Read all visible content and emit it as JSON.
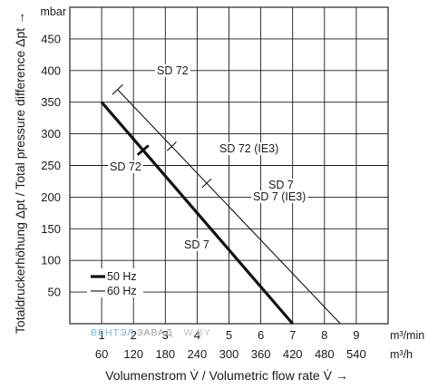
{
  "chart_data": {
    "type": "line",
    "xlabel": "Volumenstrom V̇ / Volumetric flow rate V̇ →",
    "ylabel": "Totaldruckerhöhung Δpt / Total pressure difference Δpt →",
    "y_unit": "mbar",
    "x_unit_primary": "m³/min",
    "x_unit_secondary": "m³/h",
    "xlim": [
      0,
      10
    ],
    "ylim": [
      0,
      500
    ],
    "grid": true,
    "x_ticks_primary": [
      "1",
      "2",
      "3",
      "4",
      "5",
      "6",
      "7",
      "8",
      "9"
    ],
    "x_ticks_secondary": [
      "60",
      "120",
      "180",
      "240",
      "300",
      "360",
      "420",
      "480",
      "540"
    ],
    "y_ticks": [
      "50",
      "100",
      "150",
      "200",
      "250",
      "300",
      "350",
      "400",
      "450"
    ],
    "legend": {
      "placement": "bottom-left",
      "entries": [
        {
          "label": "50 Hz",
          "style": "thick"
        },
        {
          "label": "60 Hz",
          "style": "thin"
        }
      ]
    },
    "series": [
      {
        "frequency": "50 Hz",
        "x": [
          1.0,
          7.0
        ],
        "y": [
          350,
          0
        ],
        "split_x": 2.3,
        "labels": [
          "SD 72",
          "SD 7"
        ]
      },
      {
        "frequency": "60 Hz",
        "x": [
          1.5,
          8.5
        ],
        "y": [
          370,
          0
        ],
        "split_x": 4.3,
        "split_x_ie3": 3.2,
        "labels": [
          "SD 72",
          "SD 72 (IE3)",
          "SD 7",
          "SD 7 (IE3)"
        ]
      }
    ],
    "annotations": {
      "sd72_60_top": "SD 72",
      "sd72_ie3": "SD 72 (IE3)",
      "sd7_60": "SD 7",
      "sd7_ie3": "SD 7 (IE3)",
      "sd72_50": "SD 72",
      "sd7_50": "SD 7"
    }
  },
  "watermark": {
    "part1": "ВЕНТЭЛ",
    "part2": "ЗАВАД",
    "part3": "W.BY"
  }
}
